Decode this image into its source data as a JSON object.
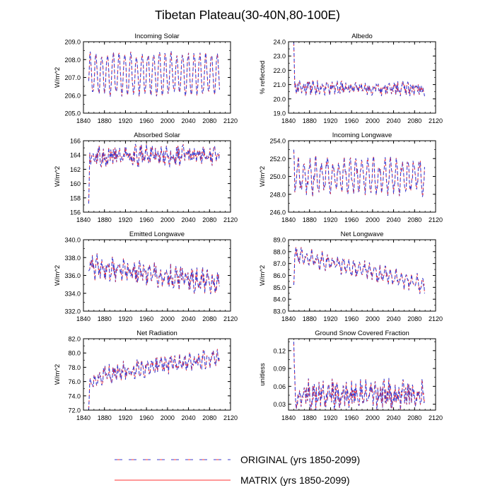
{
  "figure": {
    "title": "Tibetan Plateau(30-40N,80-100E)",
    "legend": [
      {
        "label": "ORIGINAL (yrs 1850-2099)",
        "color": "#3c3ccc",
        "style": "dashed"
      },
      {
        "label": "MATRIX (yrs 1850-2099)",
        "color": "#ff3030",
        "style": "solid"
      }
    ]
  },
  "chart_data": [
    {
      "type": "line",
      "title": "Incoming Solar",
      "xlabel": "",
      "ylabel": "W/m^2",
      "xlim": [
        1840,
        2120
      ],
      "xticks": [
        1840,
        1880,
        1920,
        1960,
        2000,
        2040,
        2080,
        2120
      ],
      "ylim": [
        205.0,
        209.0
      ],
      "yticks": [
        205.0,
        206.0,
        207.0,
        208.0,
        209.0
      ],
      "ydec": 1,
      "trend": [
        [
          1850,
          207.2
        ],
        [
          2099,
          207.2
        ]
      ],
      "amp": 1.1,
      "period": 11,
      "noise": 0.2,
      "start": 206.8,
      "series": [
        {
          "name": "ORIGINAL (yrs 1850-2099)"
        },
        {
          "name": "MATRIX (yrs 1850-2099)"
        }
      ]
    },
    {
      "type": "line",
      "title": "Albedo",
      "xlabel": "",
      "ylabel": "% reflected",
      "xlim": [
        1840,
        2120
      ],
      "xticks": [
        1840,
        1880,
        1920,
        1960,
        2000,
        2040,
        2080,
        2120
      ],
      "ylim": [
        19.0,
        24.0
      ],
      "yticks": [
        19.0,
        20.0,
        21.0,
        22.0,
        23.0,
        24.0
      ],
      "ydec": 1,
      "trend": [
        [
          1850,
          20.8
        ],
        [
          2099,
          20.7
        ]
      ],
      "amp": 0.15,
      "period": 9,
      "noise": 0.4,
      "start": 24.0,
      "series": [
        {
          "name": "ORIGINAL (yrs 1850-2099)"
        },
        {
          "name": "MATRIX (yrs 1850-2099)"
        }
      ]
    },
    {
      "type": "line",
      "title": "Absorbed Solar",
      "xlabel": "",
      "ylabel": "W/m^2",
      "xlim": [
        1840,
        2120
      ],
      "xticks": [
        1840,
        1880,
        1920,
        1960,
        2000,
        2040,
        2080,
        2120
      ],
      "ylim": [
        156,
        166
      ],
      "yticks": [
        156,
        158,
        160,
        162,
        164,
        166
      ],
      "ydec": 0,
      "trend": [
        [
          1850,
          163.8
        ],
        [
          2099,
          164.0
        ]
      ],
      "amp": 0.6,
      "period": 10,
      "noise": 1.1,
      "start": 157.2,
      "series": [
        {
          "name": "ORIGINAL (yrs 1850-2099)"
        },
        {
          "name": "MATRIX (yrs 1850-2099)"
        }
      ]
    },
    {
      "type": "line",
      "title": "Incoming Longwave",
      "xlabel": "",
      "ylabel": "W/m^2",
      "xlim": [
        1840,
        2120
      ],
      "xticks": [
        1840,
        1880,
        1920,
        1960,
        2000,
        2040,
        2080,
        2120
      ],
      "ylim": [
        246.0,
        254.0
      ],
      "yticks": [
        246.0,
        248.0,
        250.0,
        252.0,
        254.0
      ],
      "ydec": 1,
      "trend": [
        [
          1850,
          250.0
        ],
        [
          2099,
          250.0
        ]
      ],
      "amp": 1.6,
      "period": 11,
      "noise": 0.8,
      "start": 253.0,
      "series": [
        {
          "name": "ORIGINAL (yrs 1850-2099)"
        },
        {
          "name": "MATRIX (yrs 1850-2099)"
        }
      ]
    },
    {
      "type": "line",
      "title": "Emitted Longwave",
      "xlabel": "",
      "ylabel": "W/m^2",
      "xlim": [
        1840,
        2120
      ],
      "xticks": [
        1840,
        1880,
        1920,
        1960,
        2000,
        2040,
        2080,
        2120
      ],
      "ylim": [
        332.0,
        340.0
      ],
      "yticks": [
        332.0,
        334.0,
        336.0,
        338.0,
        340.0
      ],
      "ydec": 1,
      "trend": [
        [
          1850,
          337.0
        ],
        [
          2099,
          335.2
        ]
      ],
      "amp": 0.7,
      "period": 10,
      "noise": 0.9,
      "start": 336.5,
      "series": [
        {
          "name": "ORIGINAL (yrs 1850-2099)"
        },
        {
          "name": "MATRIX (yrs 1850-2099)"
        }
      ]
    },
    {
      "type": "line",
      "title": "Net Longwave",
      "xlabel": "",
      "ylabel": "W/m^2",
      "xlim": [
        1840,
        2120
      ],
      "xticks": [
        1840,
        1880,
        1920,
        1960,
        2000,
        2040,
        2080,
        2120
      ],
      "ylim": [
        83.0,
        89.0
      ],
      "yticks": [
        83.0,
        84.0,
        85.0,
        86.0,
        87.0,
        88.0,
        89.0
      ],
      "ydec": 1,
      "trend": [
        [
          1850,
          87.5
        ],
        [
          1870,
          87.6
        ],
        [
          2099,
          85.2
        ]
      ],
      "amp": 0.5,
      "period": 10,
      "noise": 0.4,
      "start": 85.2,
      "series": [
        {
          "name": "ORIGINAL (yrs 1850-2099)"
        },
        {
          "name": "MATRIX (yrs 1850-2099)"
        }
      ]
    },
    {
      "type": "line",
      "title": "Net Radiation",
      "xlabel": "",
      "ylabel": "W/m^2",
      "xlim": [
        1840,
        2120
      ],
      "xticks": [
        1840,
        1880,
        1920,
        1960,
        2000,
        2040,
        2080,
        2120
      ],
      "ylim": [
        72.0,
        82.0
      ],
      "yticks": [
        72.0,
        74.0,
        76.0,
        78.0,
        80.0,
        82.0
      ],
      "ydec": 1,
      "trend": [
        [
          1850,
          76.0
        ],
        [
          1880,
          77.0
        ],
        [
          1960,
          78.0
        ],
        [
          2099,
          79.3
        ]
      ],
      "amp": 0.6,
      "period": 9,
      "noise": 0.9,
      "start": 72.0,
      "series": [
        {
          "name": "ORIGINAL (yrs 1850-2099)"
        },
        {
          "name": "MATRIX (yrs 1850-2099)"
        }
      ]
    },
    {
      "type": "line",
      "title": "Ground Snow Covered Fraction",
      "xlabel": "",
      "ylabel": "unitless",
      "xlim": [
        1840,
        2120
      ],
      "xticks": [
        1840,
        1880,
        1920,
        1960,
        2000,
        2040,
        2080,
        2120
      ],
      "ylim": [
        0.02,
        0.14
      ],
      "yticks": [
        0.03,
        0.06,
        0.09,
        0.12
      ],
      "ydec": 2,
      "trend": [
        [
          1850,
          0.048
        ],
        [
          2099,
          0.046
        ]
      ],
      "amp": 0.008,
      "period": 9,
      "noise": 0.02,
      "start": 0.135,
      "series": [
        {
          "name": "ORIGINAL (yrs 1850-2099)"
        },
        {
          "name": "MATRIX (yrs 1850-2099)"
        }
      ]
    }
  ]
}
